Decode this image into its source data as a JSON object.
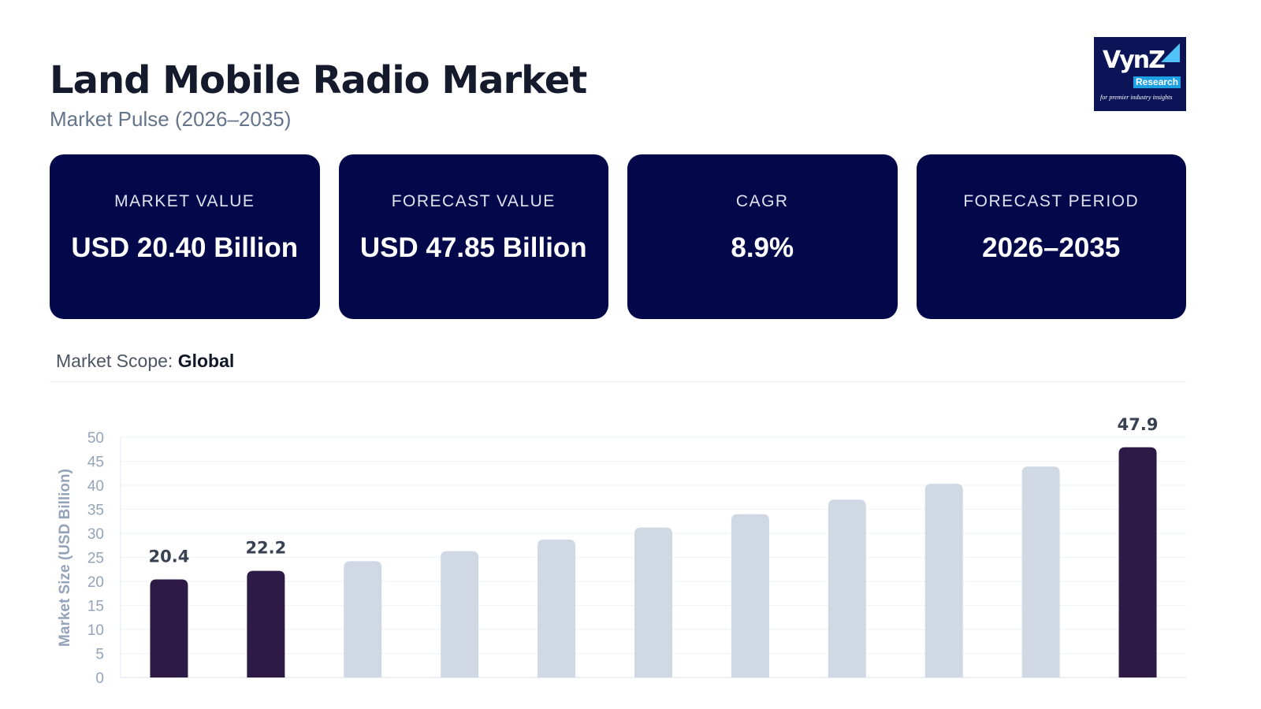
{
  "header": {
    "title": "Land Mobile Radio Market",
    "subtitle": "Market Pulse (2026–2035)"
  },
  "logo": {
    "text": "VynZ",
    "sub": "Research",
    "tagline": "for premier industry insights"
  },
  "cards": [
    {
      "label": "MARKET VALUE",
      "value": "USD 20.40 Billion"
    },
    {
      "label": "FORECAST VALUE",
      "value": "USD 47.85 Billion"
    },
    {
      "label": "CAGR",
      "value": "8.9%"
    },
    {
      "label": "FORECAST PERIOD",
      "value": "2026–2035"
    }
  ],
  "scope": {
    "label": "Market Scope:",
    "value": "Global"
  },
  "colors": {
    "highlight": "#2e1a47",
    "muted": "#cfd8e3",
    "card_bg": "#03084a"
  },
  "chart_data": {
    "type": "bar",
    "ylabel": "Market Size (USD Billion)",
    "ylim": [
      0,
      50
    ],
    "yticks": [
      0,
      5,
      10,
      15,
      20,
      25,
      30,
      35,
      40,
      45,
      50
    ],
    "grid": true,
    "values": [
      20.4,
      22.2,
      24.2,
      26.3,
      28.7,
      31.2,
      34.0,
      37.0,
      40.3,
      43.9,
      47.9
    ],
    "highlighted": [
      true,
      true,
      false,
      false,
      false,
      false,
      false,
      false,
      false,
      false,
      true
    ],
    "data_labels": [
      "20.4",
      "22.2",
      "",
      "",
      "",
      "",
      "",
      "",
      "",
      "",
      "47.9"
    ]
  }
}
